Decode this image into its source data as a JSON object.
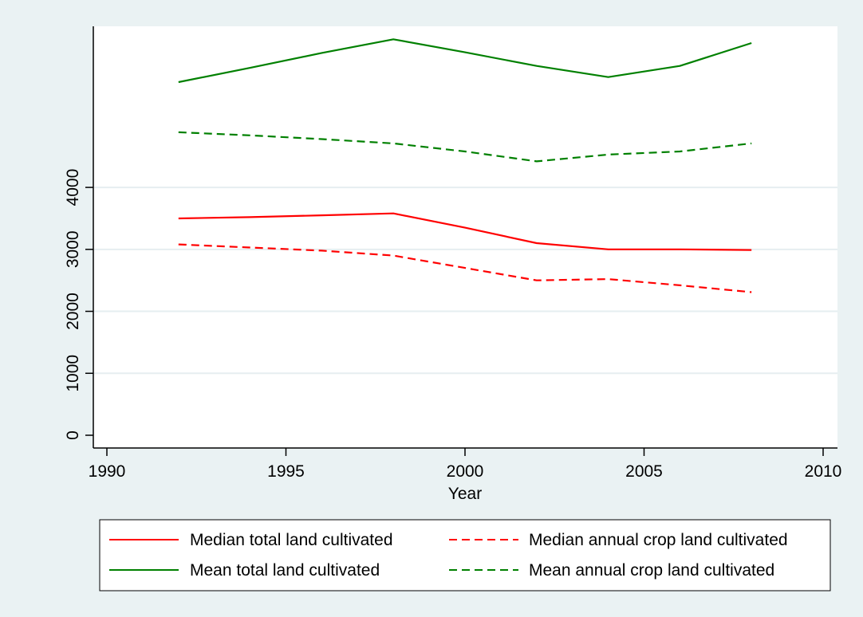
{
  "chart_data": {
    "type": "line",
    "xlabel": "Year",
    "ylabel": "",
    "xlim": [
      1990,
      2010
    ],
    "ylim": [
      0,
      6600
    ],
    "xticks": [
      1990,
      1995,
      2000,
      2005,
      2010
    ],
    "yticks": [
      0,
      1000,
      2000,
      3000,
      4000
    ],
    "ytick_labels": [
      "0",
      "1000",
      "2000",
      "3000",
      "4000"
    ],
    "grid": true,
    "legend_position": "bottom",
    "colors": {
      "background": "#eaf2f3",
      "plot": "#ffffff",
      "grid": "#e6eef0",
      "red": "#ff0000",
      "green": "#008000"
    },
    "series": [
      {
        "name": "Median total land cultivated",
        "color": "#ff0000",
        "dash": "solid",
        "x": [
          1992,
          1994,
          1996,
          1998,
          2000,
          2002,
          2004,
          2006,
          2008
        ],
        "y": [
          3500,
          3520,
          3550,
          3580,
          3350,
          3100,
          3000,
          3000,
          2990
        ]
      },
      {
        "name": "Median annual crop land cultivated",
        "color": "#ff0000",
        "dash": "dashed",
        "x": [
          1992,
          1994,
          1996,
          1998,
          2000,
          2002,
          2004,
          2006,
          2008
        ],
        "y": [
          3080,
          3030,
          2980,
          2900,
          2700,
          2500,
          2520,
          2420,
          2310
        ]
      },
      {
        "name": "Mean total land cultivated",
        "color": "#008000",
        "dash": "solid",
        "x": [
          1992,
          1994,
          1996,
          1998,
          2000,
          2002,
          2004,
          2006,
          2008
        ],
        "y": [
          5700,
          5930,
          6170,
          6390,
          6180,
          5960,
          5780,
          5960,
          6330
        ]
      },
      {
        "name": "Mean annual crop land cultivated",
        "color": "#008000",
        "dash": "dashed",
        "x": [
          1992,
          1994,
          1996,
          1998,
          2000,
          2002,
          2004,
          2006,
          2008
        ],
        "y": [
          4890,
          4840,
          4780,
          4710,
          4580,
          4420,
          4530,
          4580,
          4710
        ]
      }
    ]
  }
}
